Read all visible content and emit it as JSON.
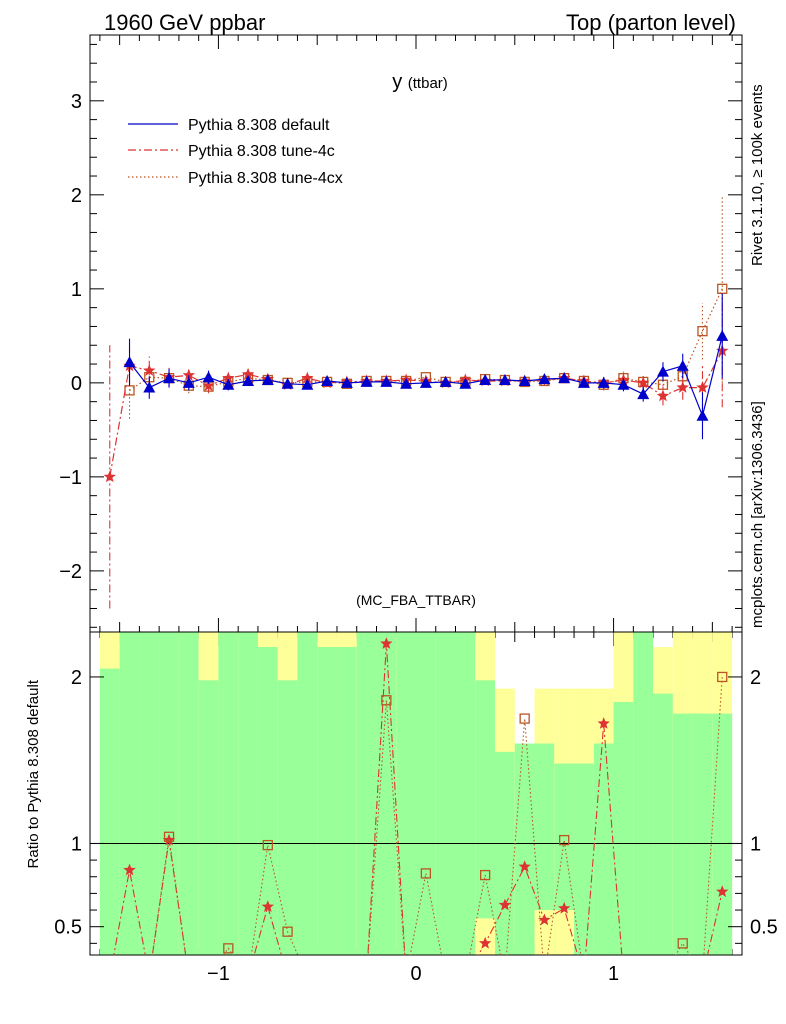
{
  "header": {
    "left": "1960 GeV ppbar",
    "right": "Top (parton level)"
  },
  "side": {
    "rivet": "Rivet 3.1.10, ≥ 100k events",
    "mcplots": "mcplots.cern.ch [arXiv:1306.3436]"
  },
  "chart_data": [
    {
      "type": "line",
      "title": "y",
      "title_sub": "(ttbar)",
      "watermark": "(MC_FBA_TTBAR)",
      "xlim": [
        -1.65,
        1.65
      ],
      "ylim": [
        -2.65,
        3.7
      ],
      "xticks": [
        -1,
        0,
        1
      ],
      "xtick_labels": [
        "−1",
        "0",
        "1"
      ],
      "yticks": [
        -2,
        -1,
        0,
        1,
        2,
        3
      ],
      "ytick_labels": [
        "−2",
        "−1",
        "0",
        "1",
        "2",
        "3"
      ],
      "legend_position": "top-left",
      "x": [
        -1.55,
        -1.45,
        -1.35,
        -1.25,
        -1.15,
        -1.05,
        -0.95,
        -0.85,
        -0.75,
        -0.65,
        -0.55,
        -0.45,
        -0.35,
        -0.25,
        -0.15,
        -0.05,
        0.05,
        0.15,
        0.25,
        0.35,
        0.45,
        0.55,
        0.65,
        0.75,
        0.85,
        0.95,
        1.05,
        1.15,
        1.25,
        1.35,
        1.45,
        1.55
      ],
      "series": [
        {
          "name": "Pythia 8.308 default",
          "color": "#0000cc",
          "marker": "triangle",
          "line": "solid",
          "values": [
            null,
            0.22,
            -0.05,
            0.05,
            0.0,
            0.06,
            -0.02,
            0.02,
            0.03,
            -0.01,
            -0.02,
            0.02,
            0.0,
            0.01,
            0.01,
            -0.01,
            0.0,
            0.01,
            -0.01,
            0.03,
            0.03,
            0.02,
            0.04,
            0.05,
            0.0,
            0.0,
            -0.02,
            -0.12,
            0.12,
            0.18,
            -0.35,
            0.5
          ],
          "errors": [
            null,
            0.25,
            0.12,
            0.1,
            0.08,
            0.07,
            0.06,
            0.05,
            0.05,
            0.04,
            0.04,
            0.04,
            0.04,
            0.04,
            0.04,
            0.04,
            0.04,
            0.04,
            0.04,
            0.04,
            0.04,
            0.04,
            0.05,
            0.05,
            0.05,
            0.06,
            0.07,
            0.08,
            0.1,
            0.13,
            0.25,
            0.45
          ]
        },
        {
          "name": "Pythia 8.308 tune-4c",
          "color": "#dd3333",
          "marker": "star",
          "line": "dashdot",
          "values": [
            -1.0,
            0.18,
            0.13,
            0.06,
            0.08,
            -0.03,
            0.05,
            0.09,
            0.04,
            -0.02,
            0.05,
            0.0,
            0.01,
            0.02,
            0.02,
            0.03,
            0.02,
            0.0,
            0.03,
            0.02,
            0.02,
            0.02,
            0.03,
            0.05,
            0.02,
            0.0,
            0.03,
            0.0,
            -0.14,
            -0.05,
            -0.05,
            0.34
          ],
          "errors": [
            1.4,
            0.2,
            0.15,
            0.1,
            0.08,
            0.07,
            0.06,
            0.05,
            0.05,
            0.04,
            0.04,
            0.04,
            0.04,
            0.04,
            0.04,
            0.04,
            0.04,
            0.04,
            0.04,
            0.04,
            0.04,
            0.04,
            0.05,
            0.05,
            0.05,
            0.06,
            0.07,
            0.08,
            0.1,
            0.13,
            0.25,
            0.6
          ]
        },
        {
          "name": "Pythia 8.308 tune-4cx",
          "color": "#bb5522",
          "marker": "square-open",
          "line": "dotted",
          "values": [
            null,
            -0.08,
            0.06,
            0.05,
            -0.03,
            -0.04,
            0.01,
            0.05,
            0.03,
            0.0,
            0.01,
            0.01,
            -0.01,
            0.02,
            0.02,
            0.02,
            0.06,
            0.01,
            0.01,
            0.04,
            0.03,
            0.01,
            0.02,
            0.05,
            0.02,
            -0.02,
            0.05,
            0.01,
            -0.02,
            0.07,
            0.55,
            1.0
          ],
          "errors": [
            null,
            0.3,
            0.15,
            0.1,
            0.08,
            0.07,
            0.06,
            0.05,
            0.05,
            0.04,
            0.04,
            0.04,
            0.04,
            0.04,
            0.04,
            0.04,
            0.04,
            0.04,
            0.04,
            0.04,
            0.04,
            0.04,
            0.05,
            0.05,
            0.05,
            0.06,
            0.07,
            0.08,
            0.1,
            0.15,
            0.3,
            1.0
          ]
        }
      ]
    },
    {
      "type": "line",
      "ylabel": "Ratio to Pythia 8.308 default",
      "xlim": [
        -1.65,
        1.65
      ],
      "ylim": [
        0.33,
        2.27
      ],
      "xticks": [
        -1,
        0,
        1
      ],
      "xtick_labels": [
        "−1",
        "0",
        "1"
      ],
      "yticks": [
        0.5,
        1,
        2
      ],
      "ytick_labels": [
        "0.5",
        "1",
        "2"
      ],
      "reference_line": 1,
      "band_colors": {
        "inner": "#99ff99",
        "outer": "#ffff99"
      },
      "band_inner": [
        [
          2.05,
          2.3
        ],
        [
          2.3,
          2.3
        ],
        [
          2.3,
          2.3
        ],
        [
          2.3,
          2.3
        ],
        [
          2.3,
          2.3
        ],
        [
          1.98,
          1.98
        ],
        [
          2.3,
          2.3
        ],
        [
          2.3,
          2.3
        ],
        [
          2.18,
          2.3
        ],
        [
          1.98,
          2.3
        ],
        [
          2.3,
          2.3
        ],
        [
          2.18,
          2.3
        ],
        [
          2.18,
          2.3
        ],
        [
          2.3,
          2.3
        ],
        [
          2.3,
          2.3
        ],
        [
          2.3,
          2.3
        ],
        [
          2.3,
          2.3
        ],
        [
          2.3,
          2.3
        ],
        [
          2.3,
          2.3
        ],
        [
          1.98,
          2.3
        ],
        [
          1.55,
          1.55
        ],
        [
          1.6,
          1.6
        ],
        [
          1.6,
          1.6
        ],
        [
          1.48,
          1.48
        ],
        [
          1.48,
          1.48
        ],
        [
          1.6,
          1.6
        ],
        [
          1.85,
          1.85
        ],
        [
          2.3,
          2.3
        ],
        [
          1.9,
          2.3
        ],
        [
          1.78,
          1.78
        ],
        [
          1.78,
          1.78
        ],
        [
          1.78,
          1.78
        ]
      ],
      "band_outer": [
        [
          2.3,
          2.3
        ],
        [
          2.3,
          2.3
        ],
        [
          2.3,
          2.3
        ],
        [
          2.3,
          2.3
        ],
        [
          2.3,
          2.3
        ],
        [
          2.3,
          2.3
        ],
        [
          2.3,
          2.3
        ],
        [
          2.3,
          2.3
        ],
        [
          2.3,
          2.3
        ],
        [
          2.3,
          2.3
        ],
        [
          2.3,
          2.3
        ],
        [
          2.3,
          2.3
        ],
        [
          2.3,
          2.3
        ],
        [
          2.3,
          2.3
        ],
        [
          2.3,
          2.3
        ],
        [
          2.3,
          2.3
        ],
        [
          2.3,
          2.3
        ],
        [
          2.3,
          2.3
        ],
        [
          2.3,
          2.3
        ],
        [
          2.3,
          2.3
        ],
        [
          1.93,
          1.93
        ],
        [
          1.6,
          1.6
        ],
        [
          1.93,
          1.93
        ],
        [
          1.93,
          1.93
        ],
        [
          1.93,
          1.93
        ],
        [
          1.93,
          1.93
        ],
        [
          2.3,
          2.3
        ],
        [
          2.3,
          2.3
        ],
        [
          2.18,
          2.3
        ],
        [
          2.3,
          2.3
        ],
        [
          2.3,
          2.3
        ],
        [
          2.3,
          2.3
        ]
      ],
      "band_lower_yellow": [
        null,
        null,
        null,
        null,
        null,
        null,
        null,
        null,
        null,
        null,
        null,
        null,
        null,
        null,
        null,
        null,
        null,
        null,
        null,
        0.55,
        null,
        null,
        0.6,
        0.6,
        null,
        null,
        null,
        null,
        null,
        null,
        null,
        null
      ],
      "ratio_series": [
        {
          "name": "Pythia 8.308 tune-4c",
          "values": [
            null,
            0.84,
            null,
            1.02,
            null,
            null,
            null,
            null,
            0.62,
            null,
            null,
            null,
            null,
            null,
            2.2,
            null,
            null,
            null,
            null,
            0.4,
            0.63,
            0.86,
            0.54,
            0.61,
            null,
            1.72,
            null,
            null,
            null,
            null,
            null,
            0.71
          ]
        },
        {
          "name": "Pythia 8.308 tune-4cx",
          "values": [
            null,
            null,
            null,
            1.04,
            null,
            null,
            0.37,
            null,
            0.99,
            0.47,
            null,
            null,
            null,
            null,
            1.86,
            null,
            0.82,
            null,
            null,
            0.81,
            null,
            1.75,
            null,
            1.02,
            null,
            null,
            null,
            null,
            null,
            0.4,
            null,
            2.0
          ]
        }
      ]
    }
  ]
}
